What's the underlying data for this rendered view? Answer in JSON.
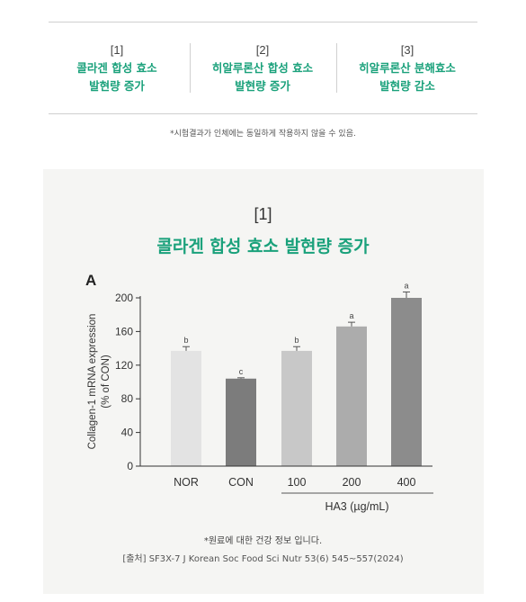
{
  "columns": [
    {
      "num": "[1]",
      "title_line1": "콜라겐 합성 효소",
      "title_line2": "발현량 증가"
    },
    {
      "num": "[2]",
      "title_line1": "히알루론산 합성 효소",
      "title_line2": "발현량 증가"
    },
    {
      "num": "[3]",
      "title_line1": "히알루론산 분해효소",
      "title_line2": "발현량 감소"
    }
  ],
  "disclaimer": "*시험결과가 인체에는 동일하게 작용하지 않을 수 있음.",
  "panel": {
    "num": "[1]",
    "title": "콜라겐 합성 효소 발현량 증가"
  },
  "chart_data": {
    "type": "bar",
    "panel_label": "A",
    "categories": [
      "NOR",
      "CON",
      "100",
      "200",
      "400"
    ],
    "values": [
      137,
      104,
      137,
      166,
      200
    ],
    "errors": [
      5,
      1,
      5,
      5,
      7
    ],
    "significance": [
      "b",
      "c",
      "b",
      "a",
      "a"
    ],
    "bar_colors": [
      "#e3e3e3",
      "#7c7c7c",
      "#c8c8c8",
      "#acacac",
      "#8c8c8c"
    ],
    "ylabel_line1": "Collagen-1 mRNA expression",
    "ylabel_line2": "(% of CON)",
    "yticks": [
      0,
      40,
      80,
      120,
      160,
      200
    ],
    "ylim": [
      0,
      200
    ],
    "group_label": "HA3 (µg/mL)",
    "grid": false
  },
  "source_note": "*원료에 대한 건강 정보 입니다.",
  "source_citation": "[출처] SF3X-7 J Korean Soc Food Sci Nutr 53(6) 545~557(2024)"
}
